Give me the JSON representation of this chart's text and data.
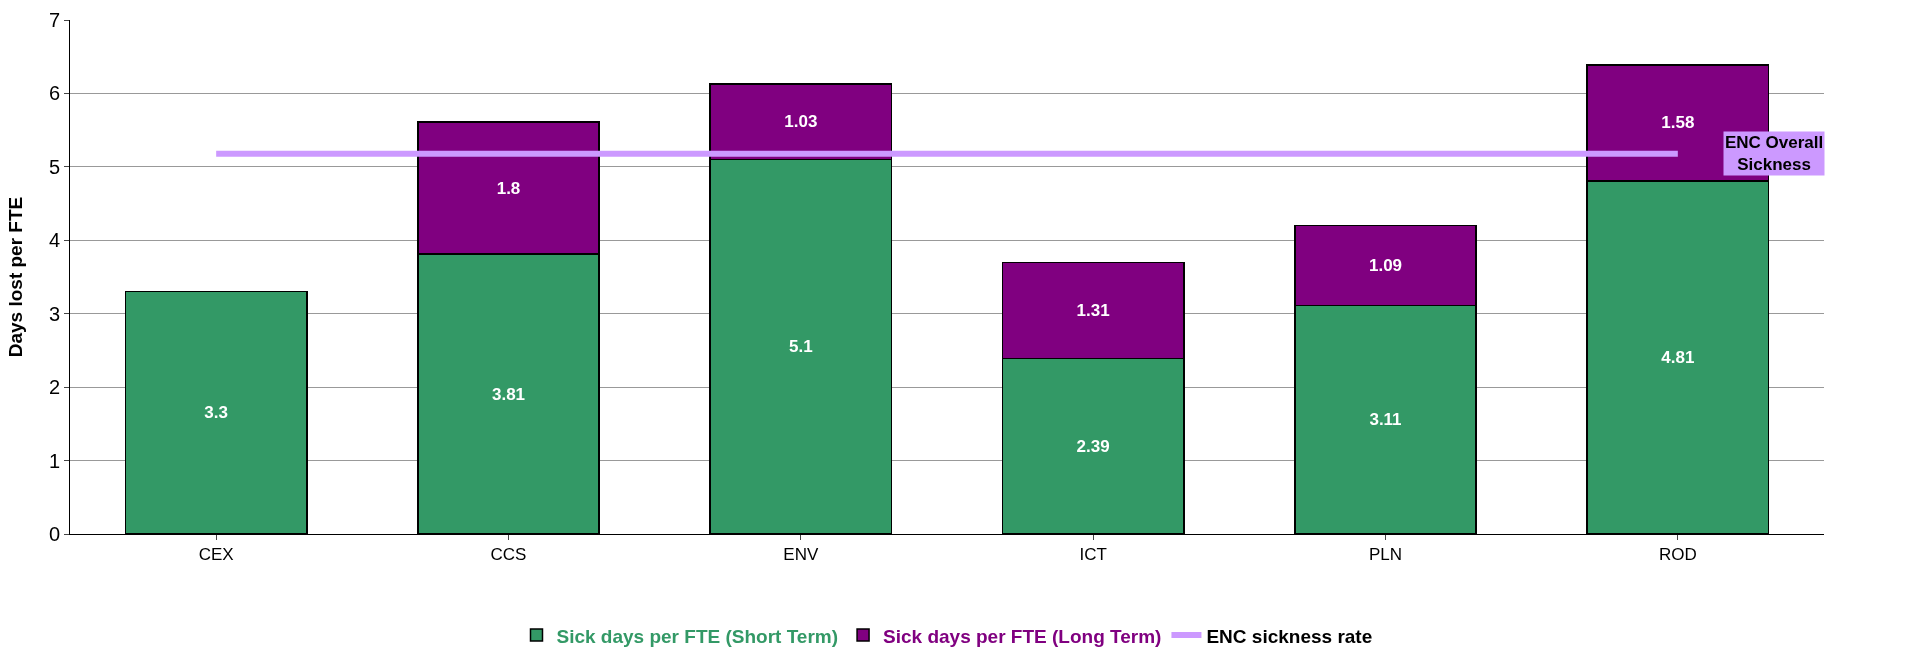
{
  "chart_data": {
    "type": "bar",
    "stacked": true,
    "ylabel": "Days lost per FTE",
    "categories": [
      "CEX",
      "CCS",
      "ENV",
      "ICT",
      "PLN",
      "ROD"
    ],
    "series": [
      {
        "name": "Sick days per FTE (Short Term)",
        "color": "#339966",
        "values": [
          3.3,
          3.81,
          5.1,
          2.39,
          3.11,
          4.81
        ],
        "value_labels": [
          "3.3",
          "3.81",
          "5.1",
          "2.39",
          "3.11",
          "4.81"
        ]
      },
      {
        "name": "Sick days per FTE (Long Term)",
        "color": "#800080",
        "values": [
          null,
          1.8,
          1.03,
          1.31,
          1.09,
          1.58
        ],
        "value_labels": [
          null,
          "1.8",
          "1.03",
          "1.31",
          "1.09",
          "1.58"
        ]
      },
      {
        "name": "ENC sickness rate",
        "type": "line",
        "color": "#cc99ff",
        "values": [
          5.18,
          5.18,
          5.18,
          5.18,
          5.18,
          5.18
        ]
      }
    ],
    "annotations": [
      {
        "text": "ENC Overall Sickness",
        "x": "ROD",
        "y": 5.18
      }
    ],
    "ylim": [
      0,
      7
    ],
    "yticks": [
      0,
      1,
      2,
      3,
      4,
      5,
      6,
      7
    ],
    "grid": "y",
    "legend": "bottom",
    "marker": "none"
  }
}
